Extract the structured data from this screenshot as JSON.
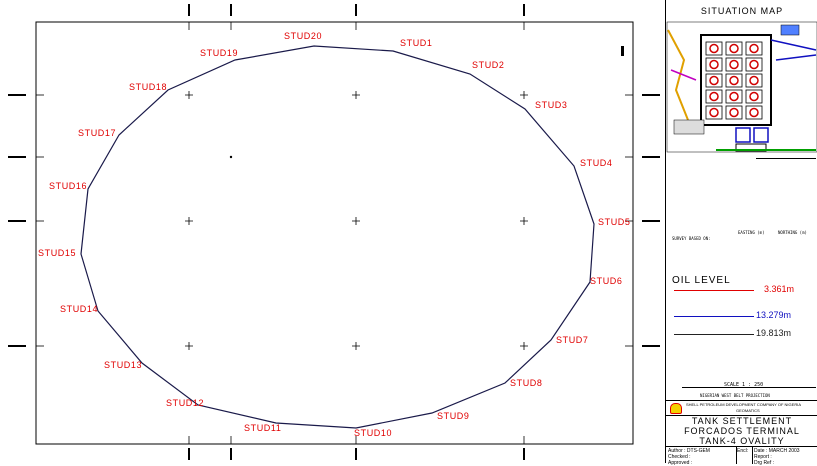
{
  "drawing": {
    "studs": [
      "STUD1",
      "STUD2",
      "STUD3",
      "STUD4",
      "STUD5",
      "STUD6",
      "STUD7",
      "STUD8",
      "STUD9",
      "STUD10",
      "STUD11",
      "STUD12",
      "STUD13",
      "STUD14",
      "STUD15",
      "STUD16",
      "STUD17",
      "STUD18",
      "STUD19",
      "STUD20"
    ],
    "stud_color": "#e00000",
    "outline_color": "#1a1a4a"
  },
  "panel": {
    "situation_title": "SITUATION MAP",
    "survey_based": "SURVEY BASED ON:",
    "easting_hdr": "EASTING (m)",
    "northing_hdr": "NORTHING (m)",
    "oil_level_title": "OIL LEVEL",
    "oil_levels": [
      {
        "value": "3.361m",
        "color": "#e00000"
      },
      {
        "value": "13.279m",
        "color": "#1010c0"
      },
      {
        "value": "19.813m",
        "color": "#222222"
      }
    ],
    "scale_label": "SCALE  1 : 250",
    "projection": "NIGERIAN WEST BELT PROJECTION",
    "company": "SHELL PETROLEUM DEVELOPMENT COMPANY OF NIGERIA",
    "dept": "GEOMATICS",
    "title_1": "TANK SETTLEMENT",
    "title_2": "FORCADOS TERMINAL",
    "title_3": "TANK-4 OVALITY",
    "author": "Author : DTS-GEM",
    "checked": "Checked :",
    "approved": "Approved :",
    "encl": "Encl:",
    "date": "Date : MARCH 2003",
    "report": "Report :",
    "drg_ref": "Drg Ref :"
  }
}
